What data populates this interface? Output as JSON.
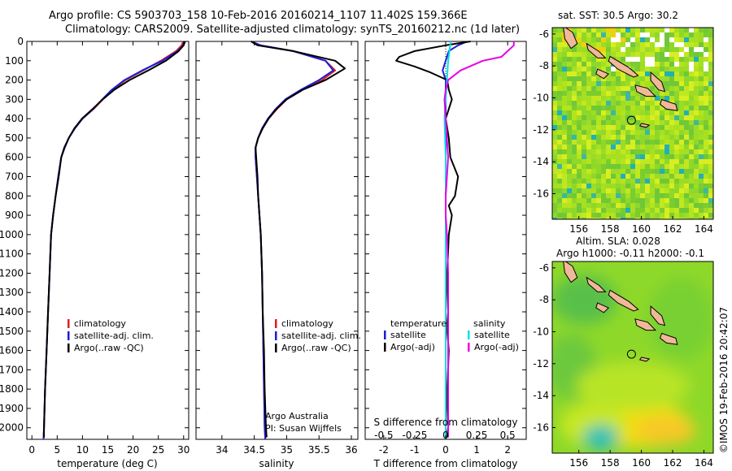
{
  "header": {
    "line1": "Argo profile: CS 5903703_158 10-Feb-2016 20160214_1107 11.402S 159.366E",
    "line2": "Climatology: CARS2009. Satellite-adjusted climatology: synTS_20160212.nc (1d later)"
  },
  "side_label": "©IMOS 19-Feb-2016 20:42:07",
  "colors": {
    "climatology": "#e0201c",
    "satellite": "#1c1cd8",
    "argo": "#000000",
    "sal_sat": "#00e0e8",
    "sal_argo": "#e800e8",
    "land": "#f0b898"
  },
  "chart_data": [
    {
      "id": "temperature",
      "type": "line",
      "xlabel": "temperature (deg C)",
      "ylabel": "",
      "xlim": [
        -1,
        31
      ],
      "ylim": [
        0,
        2060
      ],
      "y_inverted": true,
      "xticks": [
        0,
        5,
        10,
        15,
        20,
        25,
        30
      ],
      "yticks": [
        0,
        100,
        200,
        300,
        400,
        500,
        600,
        700,
        800,
        900,
        1000,
        1100,
        1200,
        1300,
        1400,
        1500,
        1600,
        1700,
        1800,
        1900,
        2000
      ],
      "legend": {
        "position": "lower-center",
        "entries": [
          "climatology",
          "satellite-adj. clim.",
          "Argo(..raw -QC)"
        ]
      },
      "series": [
        {
          "name": "climatology",
          "color": "#e0201c",
          "x": [
            29.9,
            29.6,
            28.5,
            25.5,
            22.0,
            18.5,
            16.0,
            14.0,
            12.2,
            10.0,
            8.5,
            7.3,
            6.5,
            5.8,
            5.2,
            4.7,
            4.2,
            3.8,
            3.5,
            3.2,
            2.9,
            2.6,
            2.4,
            2.3
          ],
          "y": [
            0,
            20,
            50,
            100,
            150,
            200,
            250,
            300,
            350,
            400,
            450,
            500,
            550,
            600,
            700,
            800,
            900,
            1000,
            1200,
            1400,
            1600,
            1800,
            2000,
            2060
          ]
        },
        {
          "name": "satellite-adj. clim.",
          "color": "#1c1cd8",
          "x": [
            30.1,
            29.9,
            28.8,
            25.8,
            21.8,
            18.3,
            15.8,
            13.9,
            12.1,
            10.0,
            8.5,
            7.3,
            6.5,
            5.8,
            5.2,
            4.7,
            4.2,
            3.8,
            3.5,
            3.2,
            2.9,
            2.6,
            2.4,
            2.3
          ],
          "y": [
            0,
            20,
            50,
            100,
            150,
            200,
            250,
            300,
            350,
            400,
            450,
            500,
            550,
            600,
            700,
            800,
            900,
            1000,
            1200,
            1400,
            1600,
            1800,
            2000,
            2060
          ]
        },
        {
          "name": "Argo(..raw -QC)",
          "color": "#000000",
          "x": [
            30.3,
            30.0,
            29.0,
            26.5,
            23.0,
            19.3,
            16.3,
            14.0,
            12.0,
            9.9,
            8.4,
            7.3,
            6.4,
            5.8,
            5.3,
            4.7,
            4.2,
            3.8,
            3.5,
            3.2,
            2.9,
            2.6,
            2.4,
            2.4
          ],
          "y": [
            0,
            20,
            50,
            100,
            150,
            200,
            250,
            300,
            350,
            400,
            450,
            500,
            550,
            600,
            700,
            800,
            900,
            1000,
            1200,
            1400,
            1600,
            1800,
            2000,
            2050
          ]
        }
      ]
    },
    {
      "id": "salinity",
      "type": "line",
      "xlabel": "salinity",
      "ylabel": "",
      "xlim": [
        33.6,
        36.1
      ],
      "ylim": [
        0,
        2060
      ],
      "y_inverted": true,
      "xticks": [
        34,
        34.5,
        35,
        35.5,
        36
      ],
      "legend": {
        "position": "lower-center",
        "entries": [
          "climatology",
          "satellite-adj. clim.",
          "Argo(..raw -QC)"
        ]
      },
      "annotation": [
        "Argo Australia",
        "PI: Susan Wijffels"
      ],
      "series": [
        {
          "name": "climatology",
          "color": "#e0201c",
          "x": [
            34.45,
            34.6,
            35.1,
            35.6,
            35.75,
            35.55,
            35.25,
            35.0,
            34.85,
            34.72,
            34.63,
            34.56,
            34.52,
            34.52,
            34.54,
            34.56,
            34.58,
            34.6,
            34.62,
            34.63,
            34.64,
            34.65,
            34.66,
            34.67
          ],
          "y": [
            0,
            20,
            50,
            100,
            150,
            200,
            250,
            300,
            350,
            400,
            450,
            500,
            550,
            600,
            700,
            800,
            900,
            1000,
            1200,
            1400,
            1600,
            1800,
            2000,
            2060
          ]
        },
        {
          "name": "satellite-adj. clim.",
          "color": "#1c1cd8",
          "x": [
            34.45,
            34.6,
            35.1,
            35.6,
            35.72,
            35.5,
            35.22,
            34.98,
            34.83,
            34.71,
            34.62,
            34.56,
            34.52,
            34.52,
            34.54,
            34.56,
            34.58,
            34.6,
            34.62,
            34.63,
            34.64,
            34.65,
            34.66,
            34.67
          ],
          "y": [
            0,
            20,
            50,
            100,
            150,
            200,
            250,
            300,
            350,
            400,
            450,
            500,
            550,
            600,
            700,
            800,
            900,
            1000,
            1200,
            1400,
            1600,
            1800,
            2000,
            2060
          ]
        },
        {
          "name": "Argo(..raw -QC)",
          "color": "#000000",
          "x": [
            34.45,
            34.55,
            35.1,
            35.75,
            35.9,
            35.6,
            35.25,
            35.0,
            34.84,
            34.72,
            34.63,
            34.56,
            34.52,
            34.53,
            34.55,
            34.56,
            34.58,
            34.6,
            34.62,
            34.63,
            34.65,
            34.66,
            34.68,
            34.69
          ],
          "y": [
            0,
            20,
            50,
            100,
            140,
            200,
            250,
            300,
            350,
            400,
            450,
            500,
            550,
            600,
            700,
            800,
            900,
            1000,
            1200,
            1400,
            1600,
            1800,
            2000,
            2050
          ]
        }
      ]
    },
    {
      "id": "difference",
      "type": "line",
      "xlabel": "T difference from climatology",
      "x2label": "S difference from climatology",
      "ylabel": "",
      "xlim": [
        -2.6,
        2.6
      ],
      "ylim": [
        0,
        2060
      ],
      "y_inverted": true,
      "xticks": [
        -2,
        -1,
        0,
        1,
        2
      ],
      "x2ticks": [
        -0.5,
        -0.25,
        0,
        0.25,
        0.5
      ],
      "x2tick_labels": [
        "-0.5",
        "-0.25",
        "0",
        "0.25",
        "0.5"
      ],
      "legend": {
        "position": "lower-center",
        "headers": [
          "temperature",
          "salinity"
        ],
        "entries": [
          "satellite",
          "Argo(-adj)",
          "satellite",
          "Argo(-adj)"
        ]
      },
      "series": [
        {
          "name": "satellite",
          "group": "temperature",
          "color": "#1c1cd8",
          "x": [
            0.7,
            0.4,
            0.1,
            0.0,
            -0.1,
            0.0,
            0.0,
            0.0,
            0.0,
            0.0,
            0.0,
            0.0,
            0.0,
            0.0,
            0.0,
            0.0,
            0.0,
            0.0,
            0.0
          ],
          "y": [
            0,
            20,
            50,
            100,
            150,
            200,
            250,
            300,
            400,
            500,
            600,
            800,
            1000,
            1200,
            1400,
            1600,
            1800,
            2000,
            2060
          ]
        },
        {
          "name": "Argo(-adj)",
          "group": "temperature",
          "color": "#000000",
          "x": [
            0.8,
            0.0,
            -1.0,
            -1.5,
            -1.6,
            -1.0,
            -0.5,
            0.05,
            0.1,
            0.2,
            0.0,
            0.1,
            0.15,
            0.4,
            0.3,
            0.1,
            0.2,
            0.1,
            0.05,
            0.0,
            0.1,
            0.05,
            0.0,
            0.05
          ],
          "y": [
            0,
            20,
            50,
            80,
            100,
            130,
            160,
            200,
            250,
            300,
            400,
            500,
            600,
            700,
            800,
            850,
            900,
            1000,
            1200,
            1400,
            1600,
            1800,
            2000,
            2050
          ]
        },
        {
          "name": "satellite",
          "group": "salinity",
          "color": "#00e0e8",
          "x": [
            0.04,
            0.03,
            0.02,
            0.01,
            0.0,
            -0.01,
            0.0,
            0.0,
            0.0,
            0.0,
            0.0,
            0.0,
            0.0,
            0.0
          ],
          "y": [
            0,
            50,
            100,
            200,
            300,
            400,
            600,
            800,
            1000,
            1200,
            1400,
            1600,
            1800,
            2060
          ]
        },
        {
          "name": "Argo(-adj)",
          "group": "salinity",
          "color": "#e800e8",
          "x": [
            0.55,
            0.55,
            0.5,
            0.45,
            0.3,
            0.12,
            0.02,
            0.0,
            -0.01,
            0.0,
            0.01,
            0.02,
            0.01,
            0.0,
            0.0,
            0.01,
            0.02,
            0.02,
            0.02,
            0.02,
            0.02,
            0.02
          ],
          "y": [
            0,
            20,
            50,
            80,
            100,
            150,
            200,
            250,
            300,
            400,
            500,
            600,
            700,
            800,
            900,
            1000,
            1200,
            1400,
            1600,
            1800,
            2000,
            2050
          ]
        }
      ]
    },
    {
      "id": "sst_map",
      "type": "heatmap",
      "title": "sat. SST: 30.5  Argo: 30.2",
      "xlim": [
        154.3,
        164.6
      ],
      "ylim": [
        -17.6,
        -5.6
      ],
      "xticks": [
        156,
        158,
        160,
        162,
        164
      ],
      "yticks": [
        -6,
        -8,
        -10,
        -12,
        -14,
        -16
      ],
      "marker": {
        "lon": 159.366,
        "lat": -11.402
      }
    },
    {
      "id": "sla_map",
      "type": "heatmap",
      "title": "Altim. SLA: 0.028",
      "subtitle": "Argo h1000: -0.11 h2000: -0.1",
      "xlim": [
        154.3,
        164.6
      ],
      "ylim": [
        -17.6,
        -5.6
      ],
      "xticks": [
        156,
        158,
        160,
        162,
        164
      ],
      "yticks": [
        -6,
        -8,
        -10,
        -12,
        -14,
        -16
      ],
      "marker": {
        "lon": 159.366,
        "lat": -11.402
      }
    }
  ]
}
